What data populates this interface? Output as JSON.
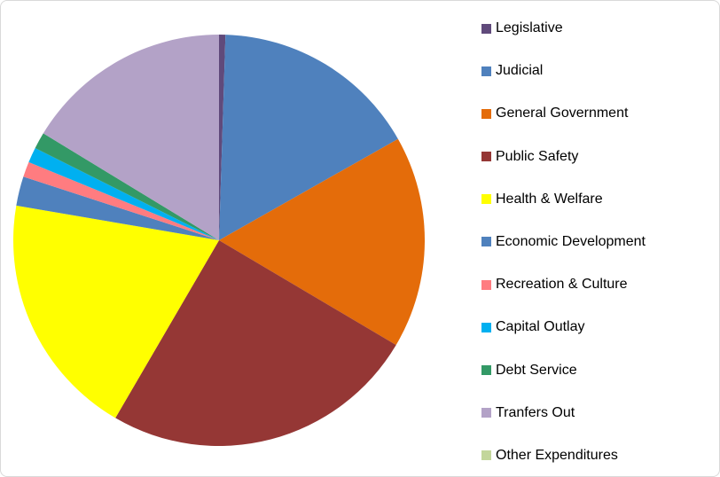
{
  "chart_data": {
    "type": "pie",
    "title": "",
    "legend_position": "right",
    "start_angle_deg": 0,
    "direction": "clockwise",
    "slices": [
      {
        "label": "Legislative",
        "value": 0.5,
        "color": "#604A7B"
      },
      {
        "label": "Judicial",
        "value": 16.3,
        "color": "#4F81BD"
      },
      {
        "label": "General Government",
        "value": 16.7,
        "color": "#E46C0A"
      },
      {
        "label": "Public Safety",
        "value": 24.9,
        "color": "#953735"
      },
      {
        "label": "Health & Welfare",
        "value": 19.3,
        "color": "#FFFF00"
      },
      {
        "label": "Economic Development",
        "value": 2.3,
        "color": "#4F81BD"
      },
      {
        "label": "Recreation & Culture",
        "value": 1.2,
        "color": "#FF7C80"
      },
      {
        "label": "Capital Outlay",
        "value": 1.2,
        "color": "#00B0F0"
      },
      {
        "label": "Debt Service",
        "value": 1.3,
        "color": "#339966"
      },
      {
        "label": "Tranfers Out",
        "value": 16.3,
        "color": "#B3A2C7"
      },
      {
        "label": "Other Expenditures",
        "value": 0,
        "color": "#C3D69B"
      }
    ]
  }
}
